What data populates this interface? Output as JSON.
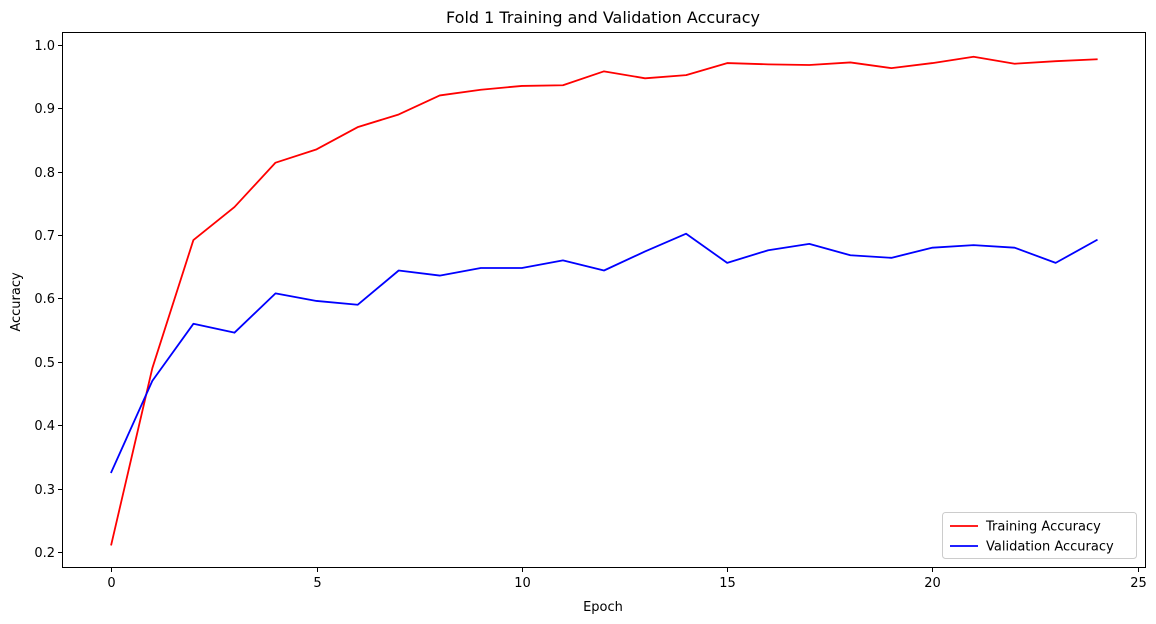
{
  "chart_data": {
    "type": "line",
    "title": "Fold 1 Training and Validation Accuracy",
    "xlabel": "Epoch",
    "ylabel": "Accuracy",
    "xlim": [
      -1.2,
      25.2
    ],
    "ylim": [
      0.175,
      1.02
    ],
    "xticks": [
      0,
      5,
      10,
      15,
      20,
      25
    ],
    "yticks": [
      0.2,
      0.3,
      0.4,
      0.5,
      0.6,
      0.7,
      0.8,
      0.9,
      1.0
    ],
    "grid": false,
    "legend_position": "bottom-right",
    "x": [
      0,
      1,
      2,
      3,
      4,
      5,
      6,
      7,
      8,
      9,
      10,
      11,
      12,
      13,
      14,
      15,
      16,
      17,
      18,
      19,
      20,
      21,
      22,
      23,
      24
    ],
    "series": [
      {
        "name": "Training Accuracy",
        "color": "#ff0000",
        "values": [
          0.212,
          0.49,
          0.692,
          0.744,
          0.814,
          0.835,
          0.87,
          0.89,
          0.92,
          0.929,
          0.935,
          0.936,
          0.958,
          0.947,
          0.952,
          0.971,
          0.969,
          0.968,
          0.972,
          0.963,
          0.971,
          0.981,
          0.97,
          0.974,
          0.977
        ]
      },
      {
        "name": "Validation Accuracy",
        "color": "#0000ff",
        "values": [
          0.326,
          0.47,
          0.56,
          0.546,
          0.608,
          0.596,
          0.59,
          0.644,
          0.636,
          0.648,
          0.648,
          0.66,
          0.644,
          0.674,
          0.702,
          0.656,
          0.676,
          0.686,
          0.668,
          0.664,
          0.68,
          0.684,
          0.68,
          0.656,
          0.692
        ]
      }
    ]
  }
}
